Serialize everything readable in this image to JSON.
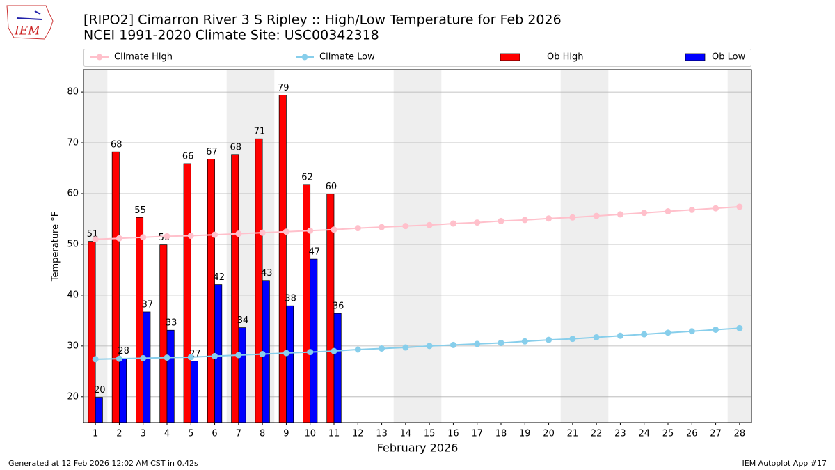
{
  "chart_data": {
    "type": "bar_line",
    "title": "[RIPO2] Cimarron River 3 S Ripley :: High/Low Temperature for Feb 2026",
    "subtitle": "NCEI 1991-2020 Climate Site: USC00342318",
    "logo": "IEM",
    "xlabel": "February 2026",
    "ylabel": "Temperature °F",
    "footer_left": "Generated at 12 Feb 2026 12:02 AM CST in 0.42s",
    "footer_right": "IEM Autoplot App #17",
    "x": [
      1,
      2,
      3,
      4,
      5,
      6,
      7,
      8,
      9,
      10,
      11,
      12,
      13,
      14,
      15,
      16,
      17,
      18,
      19,
      20,
      21,
      22,
      23,
      24,
      25,
      26,
      27,
      28
    ],
    "xlim": [
      0.5,
      28.5
    ],
    "xticks": [
      1,
      2,
      3,
      4,
      5,
      6,
      7,
      8,
      9,
      10,
      11,
      12,
      13,
      14,
      15,
      16,
      17,
      18,
      19,
      20,
      21,
      22,
      23,
      24,
      25,
      26,
      27,
      28
    ],
    "ylim": [
      14.9,
      84.4
    ],
    "yticks": [
      20,
      30,
      40,
      50,
      60,
      70,
      80
    ],
    "grid": true,
    "shaded_days": [
      1,
      7,
      8,
      14,
      15,
      21,
      22,
      28
    ],
    "shade_color": "#eeeeee",
    "series": [
      {
        "name": "Climate High",
        "kind": "line",
        "color": "#ffc0cb",
        "values": [
          51.0,
          51.2,
          51.4,
          51.6,
          51.7,
          51.9,
          52.1,
          52.3,
          52.5,
          52.7,
          52.9,
          53.2,
          53.4,
          53.6,
          53.8,
          54.1,
          54.3,
          54.6,
          54.8,
          55.1,
          55.3,
          55.6,
          55.9,
          56.2,
          56.5,
          56.8,
          57.1,
          57.4
        ]
      },
      {
        "name": "Climate Low",
        "kind": "line",
        "color": "#87ceeb",
        "values": [
          27.4,
          27.5,
          27.6,
          27.7,
          27.8,
          28.0,
          28.2,
          28.4,
          28.6,
          28.8,
          29.0,
          29.3,
          29.5,
          29.7,
          30.0,
          30.2,
          30.4,
          30.6,
          30.9,
          31.2,
          31.4,
          31.7,
          32.0,
          32.3,
          32.6,
          32.9,
          33.2,
          33.5
        ]
      },
      {
        "name": "Ob High",
        "kind": "bar",
        "color": "#ff0000",
        "values": [
          50.6,
          68.2,
          55.3,
          49.9,
          65.9,
          66.8,
          67.7,
          70.8,
          79.4,
          61.8,
          59.9,
          null,
          null,
          null,
          null,
          null,
          null,
          null,
          null,
          null,
          null,
          null,
          null,
          null,
          null,
          null,
          null,
          null
        ],
        "value_labels": [
          "51",
          "68",
          "55",
          "50",
          "66",
          "67",
          "68",
          "71",
          "79",
          "62",
          "60",
          null,
          null,
          null,
          null,
          null,
          null,
          null,
          null,
          null,
          null,
          null,
          null,
          null,
          null,
          null,
          null,
          null
        ]
      },
      {
        "name": "Ob Low",
        "kind": "bar",
        "color": "#0000ff",
        "values": [
          19.9,
          27.6,
          36.7,
          33.1,
          27.0,
          42.1,
          33.6,
          42.9,
          37.9,
          47.1,
          36.4,
          null,
          null,
          null,
          null,
          null,
          null,
          null,
          null,
          null,
          null,
          null,
          null,
          null,
          null,
          null,
          null,
          null
        ],
        "value_labels": [
          "20",
          "28",
          "37",
          "33",
          "27",
          "42",
          "34",
          "43",
          "38",
          "47",
          "36",
          null,
          null,
          null,
          null,
          null,
          null,
          null,
          null,
          null,
          null,
          null,
          null,
          null,
          null,
          null,
          null,
          null
        ]
      }
    ]
  }
}
